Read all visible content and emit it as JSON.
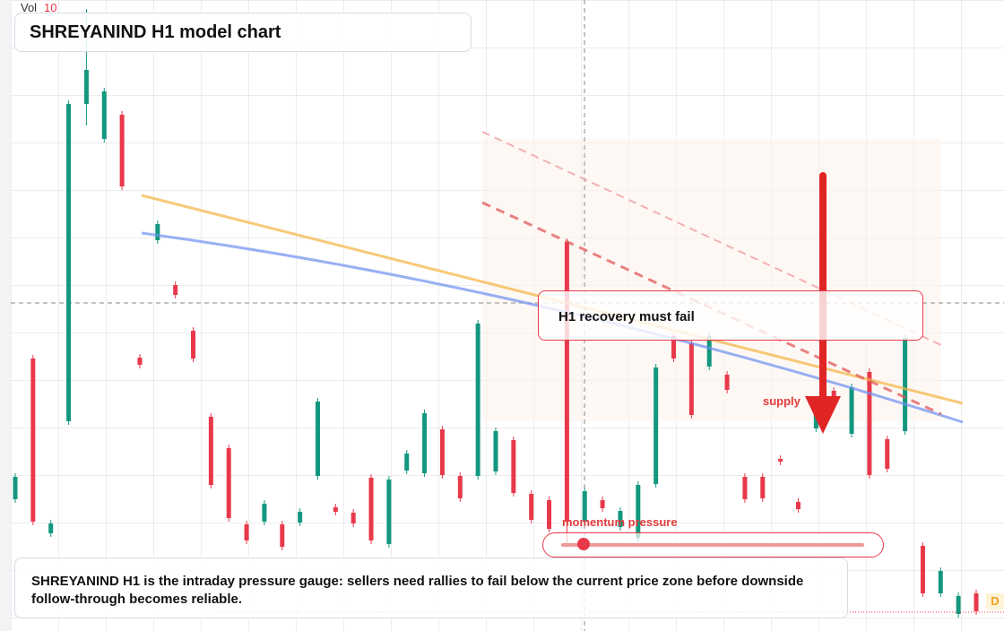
{
  "chart_data": {
    "type": "candlestick",
    "title": "SHREYANIND H1 model chart",
    "volume_label": "Vol",
    "volume_value": "10",
    "annotation": "H1 recovery must fail",
    "zone_label": "supply",
    "gauge_label": "momentum pressure",
    "description": "SHREYANIND H1 is the intraday pressure gauge: sellers need rallies to fail below the current price zone before downside follow-through becomes reliable.",
    "badge": "D",
    "up_color": "#13977f",
    "down_color": "#e8394a",
    "ylim": [
      0,
      704
    ],
    "open": [
      147,
      304,
      109,
      234,
      588,
      549,
      576,
      305,
      436,
      386,
      335,
      239,
      204,
      119,
      122,
      119,
      121,
      173,
      138,
      132,
      171,
      97,
      179,
      176,
      225,
      173,
      173,
      178,
      213,
      153,
      146,
      434,
      122,
      146,
      116,
      104,
      164,
      329,
      321,
      295,
      286,
      172,
      172,
      192,
      144,
      226,
      268,
      220,
      289,
      214,
      223,
      95,
      42,
      19,
      42
    ],
    "high": [
      176,
      308,
      124,
      592,
      694,
      606,
      580,
      309,
      458,
      390,
      339,
      243,
      208,
      123,
      146,
      123,
      137,
      260,
      142,
      136,
      175,
      173,
      202,
      247,
      229,
      177,
      347,
      227,
      217,
      157,
      150,
      438,
      160,
      150,
      138,
      167,
      298,
      333,
      325,
      333,
      290,
      176,
      176,
      196,
      148,
      256,
      272,
      276,
      293,
      218,
      331,
      99,
      71,
      43,
      46
    ],
    "low": [
      143,
      118,
      105,
      230,
      564,
      545,
      492,
      293,
      432,
      371,
      300,
      159,
      122,
      97,
      118,
      90,
      117,
      169,
      129,
      116,
      97,
      93,
      175,
      172,
      170,
      144,
      169,
      174,
      150,
      120,
      110,
      94,
      118,
      133,
      112,
      100,
      160,
      300,
      237,
      291,
      265,
      143,
      144,
      185,
      132,
      222,
      258,
      216,
      170,
      177,
      219,
      38,
      38,
      15,
      18
    ],
    "close": [
      172,
      122,
      120,
      588,
      626,
      602,
      496,
      297,
      454,
      375,
      304,
      163,
      126,
      101,
      142,
      94,
      133,
      256,
      133,
      120,
      101,
      169,
      198,
      243,
      174,
      148,
      343,
      223,
      154,
      124,
      114,
      122,
      156,
      137,
      134,
      163,
      294,
      304,
      241,
      329,
      269,
      147,
      148,
      189,
      136,
      252,
      262,
      272,
      174,
      181,
      327,
      42,
      67,
      39,
      22
    ]
  }
}
